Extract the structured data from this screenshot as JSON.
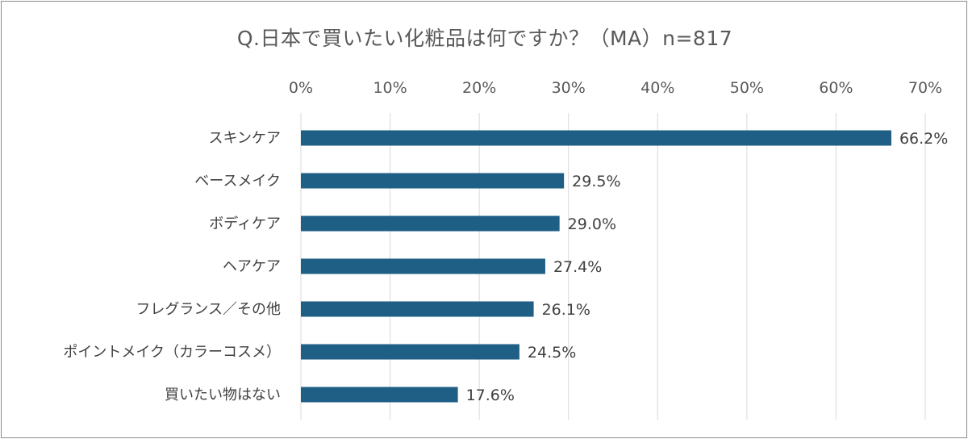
{
  "chart_data": {
    "type": "bar",
    "orientation": "horizontal",
    "title": "Q.日本で買いたい化粧品は何ですか？（MA）n=817",
    "categories": [
      "スキンケア",
      "ベースメイク",
      "ボディケア",
      "ヘアケア",
      "フレグランス／その他",
      "ポイントメイク（カラーコスメ）",
      "買いたい物はない"
    ],
    "values": [
      66.2,
      29.5,
      29.0,
      27.4,
      26.1,
      24.5,
      17.6
    ],
    "data_labels": [
      "66.2%",
      "29.5%",
      "29.0%",
      "27.4%",
      "26.1%",
      "24.5%",
      "17.6%"
    ],
    "x_ticks": [
      0,
      10,
      20,
      30,
      40,
      50,
      60,
      70
    ],
    "x_tick_labels": [
      "0%",
      "10%",
      "20%",
      "30%",
      "40%",
      "50%",
      "60%",
      "70%"
    ],
    "xlim": [
      0,
      70
    ],
    "x_axis_position": "top",
    "grid": true,
    "legend": "none",
    "bar_color": "#1f5f86",
    "grid_color": "#d9d9d9"
  }
}
